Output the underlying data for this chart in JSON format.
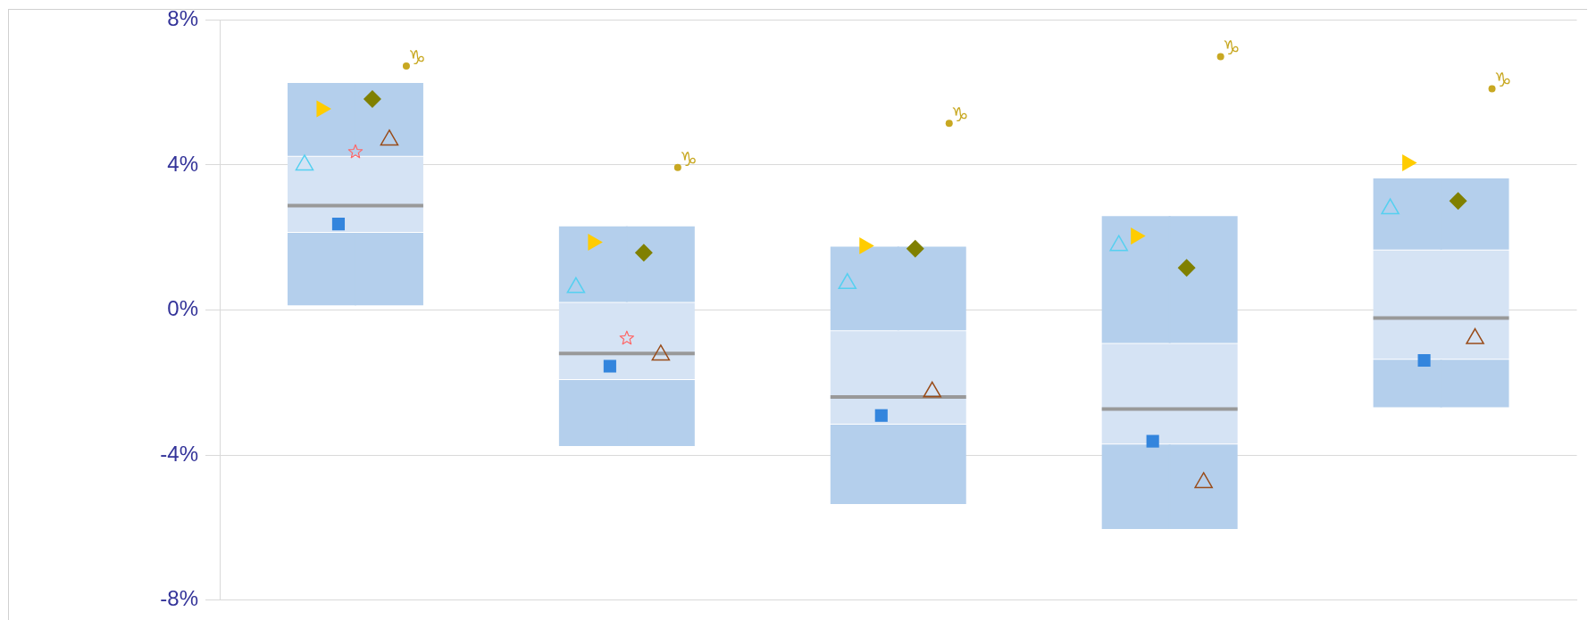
{
  "chart_data": {
    "type": "box",
    "categories": [
      null,
      null,
      null,
      null,
      null
    ],
    "ylim": [
      -8,
      8
    ],
    "yticks": [
      {
        "value": -8,
        "label": "-8%"
      },
      {
        "value": -4,
        "label": "-4%"
      },
      {
        "value": 0,
        "label": "0%"
      },
      {
        "value": 4,
        "label": "4%"
      },
      {
        "value": 8,
        "label": "8%"
      }
    ],
    "grid": "y",
    "legend": false,
    "series": [
      {
        "color": "#b4cfec",
        "boxes": [
          {
            "low": 0.13,
            "q1": 2.13,
            "median": 2.88,
            "q3": 4.25,
            "high": 6.26
          },
          {
            "low": -3.75,
            "q1": -1.93,
            "median": -1.2,
            "q3": 0.22,
            "high": 2.31
          },
          {
            "low": -5.35,
            "q1": -3.16,
            "median": -2.4,
            "q3": -0.56,
            "high": 1.75
          },
          {
            "low": -6.04,
            "q1": -3.71,
            "median": -2.73,
            "q3": -0.91,
            "high": 2.59
          },
          {
            "low": -2.68,
            "q1": -1.37,
            "median": -0.22,
            "q3": 1.67,
            "high": 3.63
          }
        ]
      },
      {
        "type": "scatter",
        "color": "#55d0f0",
        "marker": "triangle",
        "values": [
          4.0,
          0.62,
          0.73,
          1.78,
          2.79
        ]
      },
      {
        "type": "scatter",
        "color": "#ffcc00",
        "marker": "triangle",
        "values": [
          5.55,
          1.87,
          1.77,
          2.04,
          4.06
        ]
      },
      {
        "type": "scatter",
        "color": "#3385dd",
        "marker": "square",
        "values": [
          2.37,
          -1.55,
          -2.91,
          -3.62,
          -1.39
        ]
      },
      {
        "type": "scatter",
        "color": "#ff6666",
        "marker": "star",
        "values": [
          4.36,
          -0.78,
          null,
          null,
          null
        ]
      },
      {
        "type": "scatter",
        "color": "#808000",
        "marker": "diamond",
        "values": [
          5.82,
          1.58,
          1.69,
          1.16,
          3.01
        ]
      },
      {
        "type": "scatter",
        "color": "#994c1a",
        "marker": "triangle",
        "values": [
          4.69,
          -1.24,
          -2.26,
          -4.76,
          -0.79
        ]
      },
      {
        "type": "scatter",
        "color": "#c8a822",
        "marker": "circle",
        "values": [
          6.73,
          3.93,
          5.15,
          6.99,
          6.1
        ],
        "value_labels": [
          "♑",
          "♑",
          "♑",
          "♑",
          "♑"
        ]
      }
    ]
  }
}
